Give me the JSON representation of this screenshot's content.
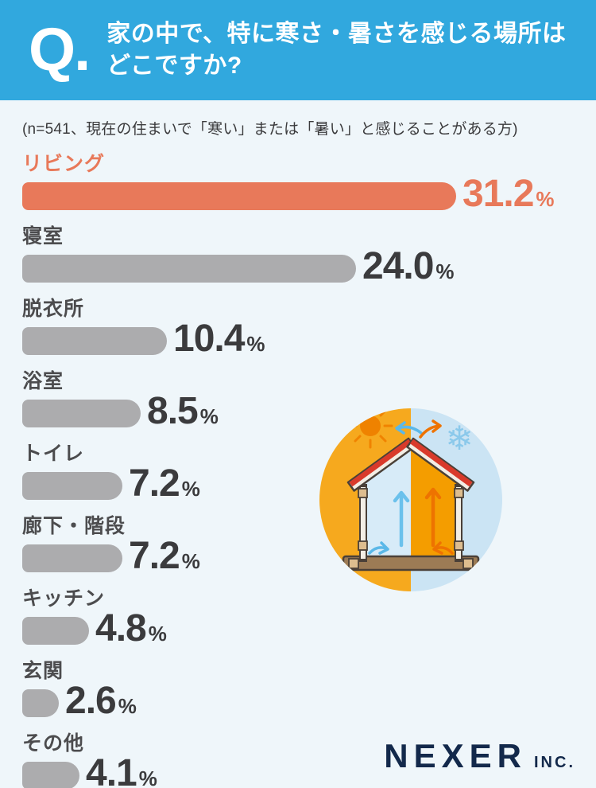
{
  "header": {
    "q_label": "Q.",
    "title_line1": "家の中で、特に寒さ・暑さを感じる場所は",
    "title_line2": "どこですか?",
    "bg_color": "#31A8DE",
    "text_color": "#FFFFFF"
  },
  "note": "(n=541、現在の住まいで「寒い」または「暑い」と感じることがある方)",
  "chart_data": {
    "type": "bar",
    "orientation": "horizontal",
    "title": "家の中で、特に寒さ・暑さを感じる場所はどこですか?",
    "sample_note": "n=541、現在の住まいで「寒い」または「暑い」と感じることがある方",
    "unit": "%",
    "categories": [
      "リビング",
      "寝室",
      "脱衣所",
      "浴室",
      "トイレ",
      "廊下・階段",
      "キッチン",
      "玄関",
      "その他"
    ],
    "values": [
      31.2,
      24.0,
      10.4,
      8.5,
      7.2,
      7.2,
      4.8,
      2.6,
      4.1
    ],
    "value_labels": [
      "31.2",
      "24.0",
      "10.4",
      "8.5",
      "7.2",
      "7.2",
      "4.8",
      "2.6",
      "4.1"
    ],
    "highlight_index": 0,
    "highlight_color": "#E8795A",
    "bar_color": "#ACACAE",
    "value_text_color": "#3B3B3D",
    "category_label_color": "#4C4C4E",
    "xlim": [
      0,
      35
    ],
    "grid": false,
    "legend": false
  },
  "illustration": {
    "description": "house cross-section in circle: warm side with sun, cool side with snowflake, rising air arrows",
    "warm_half_color": "#F6A91E",
    "cool_half_color": "#CBE4F4",
    "interior_cool_color": "#D7EBF8",
    "interior_warm_color": "#F49D00",
    "sun_color": "#EF8200",
    "snowflake_glyph": "❄",
    "snowflake_color": "#8BC9EB",
    "roof_color": "#D93A2B",
    "wall_color": "#F3EEE5",
    "floor_color": "#9C7B55",
    "outline_color": "#4A4038",
    "cool_arrow_color": "#6BC1EC",
    "warm_arrow_color": "#EE7300"
  },
  "footer": {
    "logo_main": "NEXER",
    "logo_suffix": "INC.",
    "color": "#13294B"
  }
}
